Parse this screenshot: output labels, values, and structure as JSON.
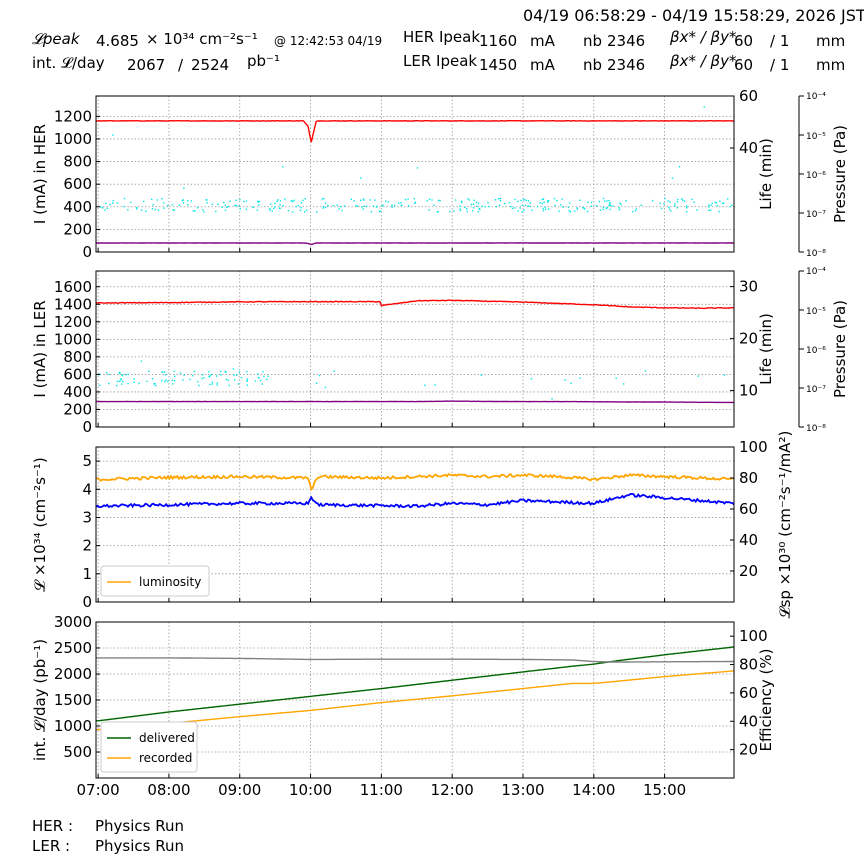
{
  "header": {
    "time_range": "04/19 06:58:29 - 04/19 15:58:29, 2026 JST",
    "peak_lumi_label": "𝓛peak",
    "peak_lumi_value": "4.685",
    "peak_lumi_unit": "× 10³⁴ cm⁻²s⁻¹",
    "peak_lumi_time": "@ 12:42:53 04/19",
    "int_lumi_label": "int. 𝓛/day",
    "int_lumi_value": "2067",
    "int_lumi_sep": "/",
    "int_lumi_total": "2524",
    "int_lumi_unit": "pb⁻¹",
    "her_label": "HER Ipeak",
    "her_current": "1160",
    "her_unit": "mA",
    "her_nb_label": "nb",
    "her_nb": "2346",
    "her_beta_label": "βx* / βy*",
    "her_beta_x": "60",
    "her_beta_y": "/ 1",
    "her_beta_unit": "mm",
    "ler_label": "LER Ipeak",
    "ler_current": "1450",
    "ler_unit": "mA",
    "ler_nb_label": "nb",
    "ler_nb": "2346",
    "ler_beta_label": "βx* / βy*",
    "ler_beta_x": "60",
    "ler_beta_y": "/ 1",
    "ler_beta_unit": "mm"
  },
  "footer": {
    "her_label": "HER :",
    "her_status": "Physics Run",
    "ler_label": "LER :",
    "ler_status": "Physics Run"
  },
  "chart_data": [
    {
      "type": "line",
      "ylabel": "I (mA) in HER",
      "ylabel2": "Life (min)",
      "ylabel3": "Pressure (Pa)",
      "ylim": [
        0,
        1380
      ],
      "yticks": [
        0,
        200,
        400,
        600,
        800,
        1000,
        1200
      ],
      "y2lim": [
        0,
        60
      ],
      "y2ticks": [
        40,
        60
      ],
      "y3ticks": [
        "10⁻⁸",
        "10⁻⁷",
        "10⁻⁶",
        "10⁻⁵",
        "10⁻⁴"
      ],
      "x": [
        7,
        8,
        9,
        9.9,
        9.98,
        10.0,
        10.08,
        11,
        12,
        13,
        14,
        15,
        15.98
      ],
      "series": [
        {
          "color": "#ff0000",
          "values": [
            1160,
            1160,
            1160,
            1160,
            1100,
            945,
            1160,
            1160,
            1160,
            1160,
            1160,
            1160,
            1160
          ]
        },
        {
          "color": "#800080",
          "values": [
            80,
            80,
            80,
            80,
            75,
            65,
            80,
            80,
            80,
            80,
            80,
            80,
            80
          ]
        }
      ],
      "scatter": {
        "color": "#00e5e5",
        "band": [
          360,
          480
        ],
        "outliers": [
          [
            7.2,
            1040
          ],
          [
            8.2,
            570
          ],
          [
            9.6,
            760
          ],
          [
            10.7,
            660
          ],
          [
            11.5,
            750
          ],
          [
            15.1,
            660
          ],
          [
            15.2,
            760
          ],
          [
            15.55,
            1290
          ]
        ]
      }
    },
    {
      "type": "line",
      "ylabel": "I (mA) in LER",
      "ylabel2": "Life (min)",
      "ylabel3": "Pressure (Pa)",
      "ylim": [
        0,
        1780
      ],
      "yticks": [
        0,
        200,
        400,
        600,
        800,
        1000,
        1200,
        1400,
        1600
      ],
      "y2lim": [
        3,
        33
      ],
      "y2ticks": [
        10,
        20,
        30
      ],
      "y3ticks": [
        "10⁻⁸",
        "10⁻⁷",
        "10⁻⁶",
        "10⁻⁵",
        "10⁻⁴"
      ],
      "x": [
        7,
        8,
        9,
        10,
        10.98,
        11,
        11.5,
        12,
        12.5,
        13,
        13.5,
        14,
        14.5,
        15,
        15.5,
        15.98
      ],
      "series": [
        {
          "color": "#ff0000",
          "values": [
            1415,
            1420,
            1428,
            1430,
            1430,
            1385,
            1440,
            1445,
            1435,
            1425,
            1410,
            1395,
            1370,
            1360,
            1355,
            1360
          ]
        },
        {
          "color": "#800080",
          "values": [
            290,
            290,
            290,
            290,
            290,
            290,
            290,
            295,
            292,
            290,
            290,
            288,
            286,
            285,
            282,
            280
          ]
        }
      ],
      "scatter": {
        "color": "#00e5e5",
        "band": [
          480,
          650
        ],
        "outliers": [
          [
            7.6,
            760
          ],
          [
            8.9,
            670
          ],
          [
            10.2,
            460
          ],
          [
            12.4,
            600
          ],
          [
            13.4,
            330
          ]
        ]
      }
    },
    {
      "type": "line",
      "ylabel": "𝓛 ×10³⁴ (cm⁻²s⁻¹)",
      "ylabel2": "𝓛sp ×10³⁰ (cm⁻²s⁻¹/mA²)",
      "ylim": [
        0,
        5.5
      ],
      "yticks": [
        0,
        1,
        2,
        3,
        4,
        5
      ],
      "y2lim": [
        0,
        100
      ],
      "y2ticks": [
        20,
        40,
        60,
        80,
        100
      ],
      "legend": [
        "luminosity"
      ],
      "legend_position": "lower-left",
      "x": [
        7,
        8,
        9,
        9.98,
        10.0,
        10.1,
        11,
        11.5,
        12,
        12.5,
        13,
        13.5,
        14,
        14.5,
        15,
        15.5,
        15.98
      ],
      "series": [
        {
          "name": "luminosity",
          "color": "#ffa500",
          "values": [
            4.35,
            4.42,
            4.45,
            4.4,
            3.9,
            4.45,
            4.4,
            4.45,
            4.5,
            4.45,
            4.5,
            4.45,
            4.35,
            4.5,
            4.45,
            4.4,
            4.35
          ]
        },
        {
          "color": "#0000ff",
          "values": [
            3.4,
            3.45,
            3.5,
            3.5,
            3.75,
            3.45,
            3.42,
            3.4,
            3.5,
            3.45,
            3.6,
            3.55,
            3.5,
            3.8,
            3.7,
            3.6,
            3.5
          ]
        }
      ]
    },
    {
      "type": "line",
      "ylabel": "int. 𝓛/day (pb⁻¹)",
      "ylabel2": "Efficiency (%)",
      "ylim": [
        0,
        3000
      ],
      "yticks": [
        500,
        1000,
        1500,
        2000,
        2500,
        3000
      ],
      "y2lim": [
        0,
        110
      ],
      "y2ticks": [
        20,
        40,
        60,
        80,
        100
      ],
      "legend": [
        "delivered",
        "recorded"
      ],
      "legend_position": "lower-left",
      "xlabels": [
        "07:00",
        "08:00",
        "09:00",
        "10:00",
        "11:00",
        "12:00",
        "13:00",
        "14:00",
        "15:00"
      ],
      "x": [
        7,
        8,
        9,
        10,
        11,
        12,
        13,
        13.7,
        14,
        14.25,
        15,
        15.98
      ],
      "series": [
        {
          "name": "delivered",
          "color": "#006400",
          "values": [
            1100,
            1270,
            1420,
            1570,
            1720,
            1880,
            2040,
            2150,
            2190,
            2240,
            2370,
            2520
          ]
        },
        {
          "name": "recorded",
          "color": "#ffa500",
          "values": [
            930,
            1050,
            1180,
            1300,
            1450,
            1580,
            1720,
            1820,
            1820,
            1850,
            1950,
            2060
          ]
        },
        {
          "color": "#808080",
          "values": [
            2310,
            2310,
            2300,
            2280,
            2285,
            2285,
            2280,
            2270,
            2240,
            2230,
            2235,
            2240
          ]
        }
      ]
    }
  ]
}
